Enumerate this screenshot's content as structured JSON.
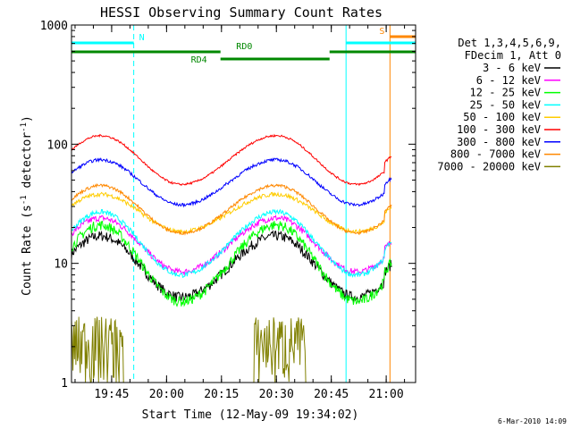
{
  "chart_data": {
    "type": "line",
    "title": "HESSI Observing Summary Count Rates",
    "xlabel": "Start Time (12-May-09 19:34:02)",
    "ylabel": "Count Rate (s",
    "ylabel_sup": "-1",
    "ylabel_mid": " detector",
    "ylabel_end": ")",
    "y_scale": "log",
    "ylim": [
      1,
      1000
    ],
    "xlim_minutes": [
      0,
      94
    ],
    "xticks": [
      {
        "min": 10.97,
        "label": "19:45"
      },
      {
        "min": 25.97,
        "label": "20:00"
      },
      {
        "min": 40.97,
        "label": "20:15"
      },
      {
        "min": 55.97,
        "label": "20:30"
      },
      {
        "min": 70.97,
        "label": "20:45"
      },
      {
        "min": 85.97,
        "label": "21:00"
      }
    ],
    "yticks": [
      {
        "v": 1,
        "label": "1"
      },
      {
        "v": 10,
        "label": "10"
      },
      {
        "v": 100,
        "label": "100"
      },
      {
        "v": 1000,
        "label": "1000"
      }
    ],
    "legend": {
      "header": [
        "Det 1,3,4,5,6,9,",
        "FDecim 1, Att 0"
      ],
      "placement": "right"
    },
    "series": [
      {
        "name": "3 - 6 keV",
        "color": "#000000",
        "amp": 17,
        "base": 5.2,
        "noise": 0.1,
        "step": 1.0
      },
      {
        "name": "6 - 12 keV",
        "color": "#ff00ff",
        "amp": 24,
        "base": 8.5,
        "noise": 0.06,
        "step": 1.0
      },
      {
        "name": "12 - 25 keV",
        "color": "#00ff00",
        "amp": 21,
        "base": 4.8,
        "noise": 0.1,
        "step": 1.0
      },
      {
        "name": "25 - 50 keV",
        "color": "#00ffff",
        "amp": 27,
        "base": 8.0,
        "noise": 0.05,
        "step": 1.0
      },
      {
        "name": "50 - 100 keV",
        "color": "#ffcc00",
        "amp": 38,
        "base": 18.5,
        "noise": 0.04,
        "step": 0.0
      },
      {
        "name": "100 - 300 keV",
        "color": "#ff0000",
        "amp": 118,
        "base": 46,
        "noise": 0.02,
        "step": 1.0
      },
      {
        "name": "300 - 800 keV",
        "color": "#0000ff",
        "amp": 74,
        "base": 31,
        "noise": 0.03,
        "step": 0.0
      },
      {
        "name": "800 - 7000 keV",
        "color": "#ff8800",
        "amp": 45,
        "base": 18,
        "noise": 0.03,
        "step": 0.0
      },
      {
        "name": "7000 - 20000 keV",
        "color": "#808000",
        "amp": 3.5,
        "base": 1.0,
        "noise": 0.3,
        "step": 0.0
      }
    ],
    "orbit": {
      "peak1_min": 8,
      "min1_min": 30,
      "peak2_min": 56,
      "min2_min": 78
    },
    "gaps_min": [
      40.7,
      70.5
    ],
    "data_end_min": 87.5,
    "flag_bars": [
      {
        "label": "N",
        "color": "#00ffff",
        "segments": [
          [
            0,
            17
          ],
          [
            75,
            94
          ]
        ],
        "level": 0
      },
      {
        "label": "RD0",
        "color": "#008800",
        "segments": [
          [
            0,
            40.7
          ],
          [
            70.5,
            94
          ]
        ],
        "level": 1
      },
      {
        "label": "RD4",
        "color": "#008800",
        "segments": [
          [
            40.7,
            70.5
          ]
        ],
        "level": 2
      },
      {
        "label": "S",
        "color": "#ff8800",
        "segments": [
          [
            87,
            94
          ]
        ],
        "level": -1
      }
    ],
    "vlines": [
      {
        "min": 0,
        "color": "#00ffff",
        "style": "solid"
      },
      {
        "min": 17,
        "color": "#00ffff",
        "style": "dashed"
      },
      {
        "min": 75,
        "color": "#00ffff",
        "style": "solid"
      },
      {
        "min": 87,
        "color": "#ff8800",
        "style": "solid"
      },
      {
        "min": 94,
        "color": "#00ffff",
        "style": "dashed"
      }
    ],
    "footer_date": "6-Mar-2010 14:09"
  }
}
